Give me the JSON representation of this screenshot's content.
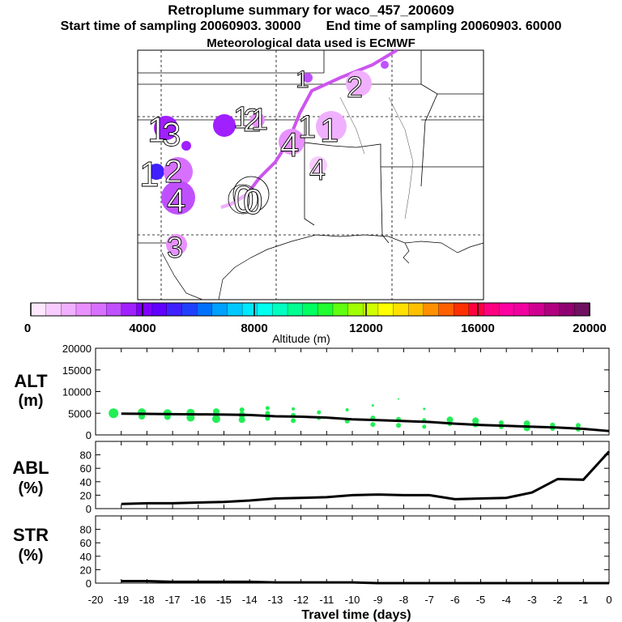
{
  "header": {
    "title": "Retroplume summary for waco_457_200609",
    "start_label": "Start time of sampling 20060903. 30000",
    "end_label": "End time of sampling 20060903. 60000",
    "met_label": "Meteorological data used is ECMWF"
  },
  "colors": {
    "plume_track": "#cc55ee",
    "dots": "#22ee55",
    "lines": "#000000",
    "colorbar": [
      "#ffe8ff",
      "#f8ccff",
      "#f0b0ff",
      "#e890ff",
      "#d870ff",
      "#c050ff",
      "#a020ff",
      "#8000ff",
      "#6000ff",
      "#4020ff",
      "#2040ff",
      "#0070ff",
      "#00a0ff",
      "#00c8ff",
      "#00e8ff",
      "#00ffee",
      "#00ffc0",
      "#00ff90",
      "#00ff60",
      "#20ff30",
      "#60ff10",
      "#a0ff00",
      "#d0ff00",
      "#ffff00",
      "#ffe000",
      "#ffc000",
      "#ff9000",
      "#ff6000",
      "#ff3000",
      "#ff0040",
      "#ff0080",
      "#ff00a0",
      "#f000a0",
      "#d00090",
      "#b00080",
      "#900070",
      "#701060"
    ]
  },
  "map_labels": [
    "1",
    "3",
    "1",
    "2",
    "1",
    "1",
    "4",
    "1",
    "1",
    "2",
    "4",
    "3",
    "0",
    "0",
    "4",
    "2",
    "1"
  ],
  "colorbar_ticks": [
    "0",
    "4000",
    "8000",
    "12000",
    "16000",
    "20000"
  ],
  "colorbar_label": "Altitude (m)",
  "chart_data": [
    {
      "type": "scatter",
      "title": "ALT (m)",
      "xlabel": "Travel time (days)",
      "ylabel": "ALT (m)",
      "ylim": [
        0,
        20000
      ],
      "yticks": [
        "0",
        "5000",
        "10000",
        "15000",
        "20000"
      ],
      "x": [
        -19,
        -18,
        -17,
        -16,
        -15,
        -14,
        -13,
        -12,
        -11,
        -10,
        -9,
        -8,
        -7,
        -6,
        -5,
        -4,
        -3,
        -2,
        -1,
        0
      ],
      "mean_line": [
        4900,
        4850,
        4800,
        4750,
        4700,
        4600,
        4300,
        4200,
        4000,
        3600,
        3400,
        3200,
        3000,
        2600,
        2300,
        2100,
        1900,
        1700,
        1400,
        900
      ],
      "points": [
        {
          "x": -19.3,
          "y": 5000,
          "s": 6
        },
        {
          "x": -18.2,
          "y": 5200,
          "s": 5
        },
        {
          "x": -18.2,
          "y": 4300,
          "s": 4
        },
        {
          "x": -17.2,
          "y": 5000,
          "s": 5
        },
        {
          "x": -17.2,
          "y": 4200,
          "s": 4
        },
        {
          "x": -16.3,
          "y": 5100,
          "s": 5
        },
        {
          "x": -16.3,
          "y": 4000,
          "s": 5
        },
        {
          "x": -15.3,
          "y": 5400,
          "s": 4
        },
        {
          "x": -15.3,
          "y": 3700,
          "s": 5
        },
        {
          "x": -14.3,
          "y": 5800,
          "s": 3
        },
        {
          "x": -14.3,
          "y": 4600,
          "s": 4
        },
        {
          "x": -14.3,
          "y": 3500,
          "s": 4
        },
        {
          "x": -13.3,
          "y": 6200,
          "s": 2.5
        },
        {
          "x": -13.3,
          "y": 5000,
          "s": 3
        },
        {
          "x": -13.3,
          "y": 3800,
          "s": 3
        },
        {
          "x": -12.3,
          "y": 6000,
          "s": 2
        },
        {
          "x": -12.3,
          "y": 4500,
          "s": 3
        },
        {
          "x": -12.3,
          "y": 3300,
          "s": 3
        },
        {
          "x": -11.3,
          "y": 5200,
          "s": 2.5
        },
        {
          "x": -11.3,
          "y": 3900,
          "s": 2.5
        },
        {
          "x": -10.2,
          "y": 5800,
          "s": 2
        },
        {
          "x": -10.2,
          "y": 3200,
          "s": 3
        },
        {
          "x": -9.2,
          "y": 6800,
          "s": 1.5
        },
        {
          "x": -9.2,
          "y": 3900,
          "s": 3
        },
        {
          "x": -9.2,
          "y": 2400,
          "s": 3
        },
        {
          "x": -8.2,
          "y": 8300,
          "s": 1
        },
        {
          "x": -8.2,
          "y": 3600,
          "s": 3
        },
        {
          "x": -8.2,
          "y": 2200,
          "s": 3
        },
        {
          "x": -7.2,
          "y": 6000,
          "s": 1.5
        },
        {
          "x": -7.2,
          "y": 3400,
          "s": 2.5
        },
        {
          "x": -7.2,
          "y": 1900,
          "s": 2.5
        },
        {
          "x": -6.2,
          "y": 3500,
          "s": 4
        },
        {
          "x": -6.2,
          "y": 2600,
          "s": 3
        },
        {
          "x": -5.2,
          "y": 3300,
          "s": 4
        },
        {
          "x": -5.2,
          "y": 2500,
          "s": 4
        },
        {
          "x": -4.2,
          "y": 2800,
          "s": 3
        },
        {
          "x": -4.2,
          "y": 1900,
          "s": 3
        },
        {
          "x": -3.2,
          "y": 2600,
          "s": 4
        },
        {
          "x": -3.2,
          "y": 1600,
          "s": 4
        },
        {
          "x": -2.2,
          "y": 2300,
          "s": 3
        },
        {
          "x": -2.2,
          "y": 1500,
          "s": 3
        },
        {
          "x": -1.2,
          "y": 2200,
          "s": 3
        },
        {
          "x": -1.2,
          "y": 1300,
          "s": 3
        }
      ]
    },
    {
      "type": "line",
      "title": "ABL (%)",
      "ylabel": "ABL (%)",
      "ylim": [
        0,
        100
      ],
      "yticks": [
        "0",
        "20",
        "40",
        "60",
        "80"
      ],
      "x": [
        -19,
        -18,
        -17,
        -16,
        -15,
        -14,
        -13,
        -12,
        -11,
        -10,
        -9,
        -8,
        -7,
        -6,
        -5,
        -4,
        -3,
        -2,
        -1,
        0
      ],
      "values": [
        7,
        8,
        8,
        9,
        10,
        12,
        15,
        16,
        17,
        20,
        21,
        20,
        20,
        14,
        15,
        16,
        24,
        44,
        43,
        85
      ]
    },
    {
      "type": "line",
      "title": "STR (%)",
      "ylabel": "STR (%)",
      "ylim": [
        0,
        100
      ],
      "yticks": [
        "0",
        "20",
        "40",
        "60",
        "80"
      ],
      "x": [
        -19,
        -18,
        -17,
        -16,
        -15,
        -14,
        -13,
        -12,
        -11,
        -10,
        -9,
        -8,
        -7,
        -6,
        -5,
        -4,
        -3,
        -2,
        -1,
        0
      ],
      "values": [
        3,
        3,
        2,
        2,
        2,
        2,
        1,
        1,
        1,
        1,
        0,
        0,
        0,
        0,
        0,
        0,
        0,
        0,
        0,
        0
      ]
    }
  ],
  "axis": {
    "x_tick_labels": [
      "-20",
      "-19",
      "-18",
      "-17",
      "-16",
      "-15",
      "-14",
      "-13",
      "-12",
      "-11",
      "-10",
      "-9",
      "-8",
      "-7",
      "-6",
      "-5",
      "-4",
      "-3",
      "-2",
      "-1",
      "0"
    ],
    "x_tick_values": [
      -20,
      -19,
      -18,
      -17,
      -16,
      -15,
      -14,
      -13,
      -12,
      -11,
      -10,
      -9,
      -8,
      -7,
      -6,
      -5,
      -4,
      -3,
      -2,
      -1,
      0
    ],
    "xlabel": "Travel time (days)"
  },
  "panel_labels": {
    "alt_1": "ALT",
    "alt_2": "(m)",
    "abl_1": "ABL",
    "abl_2": "(%)",
    "str_1": "STR",
    "str_2": "(%)"
  }
}
